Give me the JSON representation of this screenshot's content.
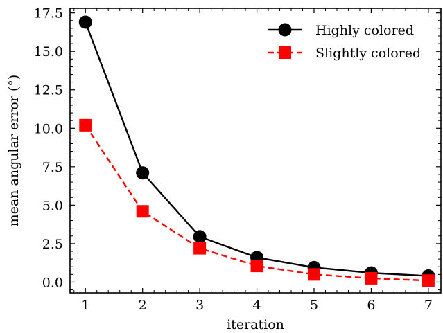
{
  "chart_data": {
    "type": "line",
    "xlabel": "iteration",
    "ylabel": "mean angular error (°)",
    "x": [
      1,
      2,
      3,
      4,
      5,
      6,
      7
    ],
    "xlim": [
      0.73,
      7.22
    ],
    "ylim": [
      -0.7,
      17.8
    ],
    "xticks": [
      1,
      2,
      3,
      4,
      5,
      6,
      7
    ],
    "yticks": [
      0.0,
      2.5,
      5.0,
      7.5,
      10.0,
      12.5,
      15.0,
      17.5
    ],
    "ytick_labels": [
      "0.0",
      "2.5",
      "5.0",
      "7.5",
      "10.0",
      "12.5",
      "15.0",
      "17.5"
    ],
    "grid": false,
    "legend_position": "top-right",
    "series": [
      {
        "name": "Highly colored",
        "values": [
          16.9,
          7.1,
          2.95,
          1.6,
          0.95,
          0.6,
          0.4
        ],
        "color": "#000000",
        "line_style": "solid",
        "marker": "circle"
      },
      {
        "name": "Slightly colored",
        "values": [
          10.2,
          4.6,
          2.2,
          1.05,
          0.5,
          0.25,
          0.1
        ],
        "color": "#ff0000",
        "line_style": "dashed",
        "marker": "square"
      }
    ]
  }
}
